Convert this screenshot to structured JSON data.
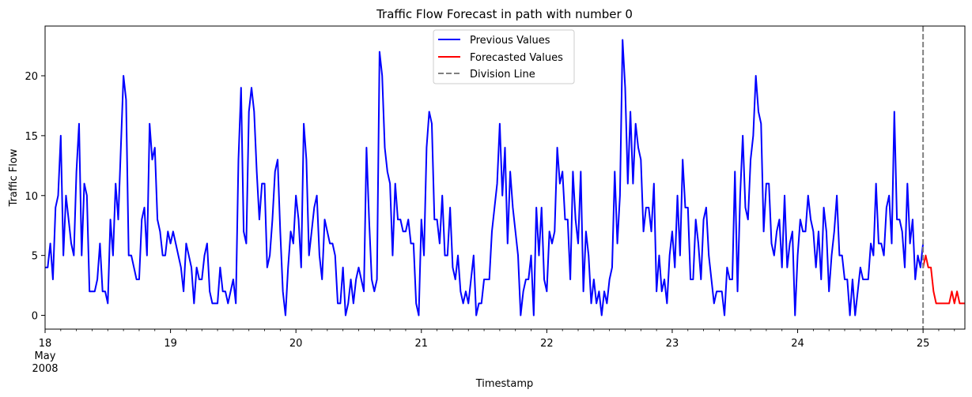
{
  "chart_data": {
    "type": "line",
    "title": "Traffic Flow Forecast in path with number 0",
    "xlabel": "Timestamp",
    "ylabel": "Traffic Flow",
    "x_unit": "hours",
    "x_start": "2008-05-18 00:00",
    "x_tick_labels": [
      {
        "hours": 0,
        "lines": [
          "18",
          "May",
          "2008"
        ]
      },
      {
        "hours": 24,
        "lines": [
          "19"
        ]
      },
      {
        "hours": 48,
        "lines": [
          "20"
        ]
      },
      {
        "hours": 72,
        "lines": [
          "21"
        ]
      },
      {
        "hours": 96,
        "lines": [
          "22"
        ]
      },
      {
        "hours": 120,
        "lines": [
          "23"
        ]
      },
      {
        "hours": 144,
        "lines": [
          "24"
        ]
      },
      {
        "hours": 168,
        "lines": [
          "25"
        ]
      }
    ],
    "xlim": [
      0,
      176
    ],
    "ylim": [
      -1.15,
      24.15
    ],
    "y_ticks": [
      0,
      5,
      10,
      15,
      20
    ],
    "grid": false,
    "legend_position": "top-center",
    "series": [
      {
        "name": "Previous Values",
        "color": "#0000ff",
        "x": [
          0,
          0.5,
          1,
          1.5,
          2,
          2.5,
          3,
          3.5,
          4,
          4.5,
          5,
          5.5,
          6,
          6.5,
          7,
          7.5,
          8,
          8.5,
          9,
          9.5,
          10,
          10.5,
          11,
          11.5,
          12,
          12.5,
          13,
          13.5,
          14,
          14.5,
          15,
          15.5,
          16,
          16.5,
          17,
          17.5,
          18,
          18.5,
          19,
          19.5,
          20,
          20.5,
          21,
          21.5,
          22,
          22.5,
          23,
          23.5,
          24,
          24.5,
          25,
          25.5,
          26,
          26.5,
          27,
          27.5,
          28,
          28.5,
          29,
          29.5,
          30,
          30.5,
          31,
          31.5,
          32,
          32.5,
          33,
          33.5,
          34,
          34.5,
          35,
          35.5,
          36,
          36.5,
          37,
          37.5,
          38,
          38.5,
          39,
          39.5,
          40,
          40.5,
          41,
          41.5,
          42,
          42.5,
          43,
          43.5,
          44,
          44.5,
          45,
          45.5,
          46,
          46.5,
          47,
          47.5,
          48,
          48.5,
          49,
          49.5,
          50,
          50.5,
          51,
          51.5,
          52,
          52.5,
          53,
          53.5,
          54,
          54.5,
          55,
          55.5,
          56,
          56.5,
          57,
          57.5,
          58,
          58.5,
          59,
          59.5,
          60,
          60.5,
          61,
          61.5,
          62,
          62.5,
          63,
          63.5,
          64,
          64.5,
          65,
          65.5,
          66,
          66.5,
          67,
          67.5,
          68,
          68.5,
          69,
          69.5,
          70,
          70.5,
          71,
          71.5,
          72,
          72.5,
          73,
          73.5,
          74,
          74.5,
          75,
          75.5,
          76,
          76.5,
          77,
          77.5,
          78,
          78.5,
          79,
          79.5,
          80,
          80.5,
          81,
          81.5,
          82,
          82.5,
          83,
          83.5,
          84,
          84.5,
          85,
          85.5,
          86,
          86.5,
          87,
          87.5,
          88,
          88.5,
          89,
          89.5,
          90,
          90.5,
          91,
          91.5,
          92,
          92.5,
          93,
          93.5,
          94,
          94.5,
          95,
          95.5,
          96,
          96.5,
          97,
          97.5,
          98,
          98.5,
          99,
          99.5,
          100,
          100.5,
          101,
          101.5,
          102,
          102.5,
          103,
          103.5,
          104,
          104.5,
          105,
          105.5,
          106,
          106.5,
          107,
          107.5,
          108,
          108.5,
          109,
          109.5,
          110,
          110.5,
          111,
          111.5,
          112,
          112.5,
          113,
          113.5,
          114,
          114.5,
          115,
          115.5,
          116,
          116.5,
          117,
          117.5,
          118,
          118.5,
          119,
          119.5,
          120,
          120.5,
          121,
          121.5,
          122,
          122.5,
          123,
          123.5,
          124,
          124.5,
          125,
          125.5,
          126,
          126.5,
          127,
          127.5,
          128,
          128.5,
          129,
          129.5,
          130,
          130.5,
          131,
          131.5,
          132,
          132.5,
          133,
          133.5,
          134,
          134.5,
          135,
          135.5,
          136,
          136.5,
          137,
          137.5,
          138,
          138.5,
          139,
          139.5,
          140,
          140.5,
          141,
          141.5,
          142,
          142.5,
          143,
          143.5,
          144,
          144.5,
          145,
          145.5,
          146,
          146.5,
          147,
          147.5,
          148,
          148.5,
          149,
          149.5,
          150,
          150.5,
          151,
          151.5,
          152,
          152.5,
          153,
          153.5,
          154,
          154.5,
          155,
          155.5,
          156,
          156.5,
          157,
          157.5,
          158,
          158.5,
          159,
          159.5,
          160,
          160.5,
          161,
          161.5,
          162,
          162.5,
          163,
          163.5,
          164,
          164.5,
          165,
          165.5,
          166,
          166.5,
          167,
          167.5,
          168
        ],
        "values": [
          4,
          4,
          6,
          3,
          9,
          10,
          15,
          5,
          10,
          8,
          6,
          5,
          12,
          16,
          5,
          11,
          10,
          2,
          2,
          2,
          3,
          6,
          2,
          2,
          1,
          8,
          5,
          11,
          8,
          14,
          20,
          18,
          5,
          5,
          4,
          3,
          3,
          8,
          9,
          5,
          16,
          13,
          14,
          8,
          7,
          5,
          5,
          7,
          6,
          7,
          6,
          5,
          4,
          2,
          6,
          5,
          4,
          1,
          4,
          3,
          3,
          5,
          6,
          2,
          1,
          1,
          1,
          4,
          2,
          2,
          1,
          2,
          3,
          1,
          13,
          19,
          7,
          6,
          17,
          19,
          17,
          12,
          8,
          11,
          11,
          4,
          5,
          8,
          12,
          13,
          7,
          2,
          0,
          4,
          7,
          6,
          10,
          8,
          4,
          16,
          13,
          5,
          7,
          9,
          10,
          5,
          3,
          8,
          7,
          6,
          6,
          5,
          1,
          1,
          4,
          0,
          1,
          3,
          1,
          3,
          4,
          3,
          2,
          14,
          8,
          3,
          2,
          3,
          22,
          20,
          14,
          12,
          11,
          5,
          11,
          8,
          8,
          7,
          7,
          8,
          6,
          6,
          1,
          0,
          8,
          5,
          14,
          17,
          16,
          8,
          8,
          6,
          10,
          5,
          5,
          9,
          4,
          3,
          5,
          2,
          1,
          2,
          1,
          3,
          5,
          0,
          1,
          1,
          3,
          3,
          3,
          7,
          9,
          11,
          16,
          10,
          14,
          6,
          12,
          9,
          7,
          5,
          0,
          2,
          3,
          3,
          5,
          0,
          9,
          5,
          9,
          3,
          2,
          7,
          6,
          7,
          14,
          11,
          12,
          8,
          8,
          3,
          12,
          8,
          6,
          12,
          2,
          7,
          5,
          1,
          3,
          1,
          2,
          0,
          2,
          1,
          3,
          4,
          12,
          6,
          10,
          23,
          19,
          11,
          17,
          11,
          16,
          14,
          13,
          7,
          9,
          9,
          7,
          11,
          2,
          5,
          2,
          3,
          1,
          5,
          7,
          4,
          10,
          5,
          13,
          9,
          9,
          3,
          3,
          8,
          6,
          3,
          8,
          9,
          5,
          3,
          1,
          2,
          2,
          2,
          0,
          4,
          3,
          3,
          12,
          2,
          10,
          15,
          9,
          8,
          13,
          15,
          20,
          17,
          16,
          7,
          11,
          11,
          6,
          5,
          7,
          8,
          4,
          10,
          4,
          6,
          7,
          0,
          5,
          8,
          7,
          7,
          10,
          8,
          7,
          4,
          7,
          3,
          9,
          7,
          2,
          5,
          7,
          10,
          5,
          5,
          3,
          3,
          0,
          3,
          0,
          2,
          4,
          3,
          3,
          3,
          6,
          5,
          11,
          6,
          6,
          5,
          9,
          10,
          6,
          17,
          8,
          8,
          7,
          4,
          11,
          6,
          8,
          3,
          5,
          4,
          6
        ]
      },
      {
        "name": "Forecasted Values",
        "color": "#ff0000",
        "x": [
          168,
          168.5,
          169,
          169.5,
          170,
          170.5,
          171,
          171.5,
          172,
          172.5,
          173,
          173.5,
          174,
          174.5,
          175,
          175.5,
          176
        ],
        "values": [
          4,
          5,
          4,
          4,
          2,
          1,
          1,
          1,
          1,
          1,
          1,
          2,
          1,
          2,
          1,
          1,
          1
        ]
      }
    ],
    "division_line": {
      "name": "Division Line",
      "x": 168,
      "color": "#808080"
    }
  }
}
